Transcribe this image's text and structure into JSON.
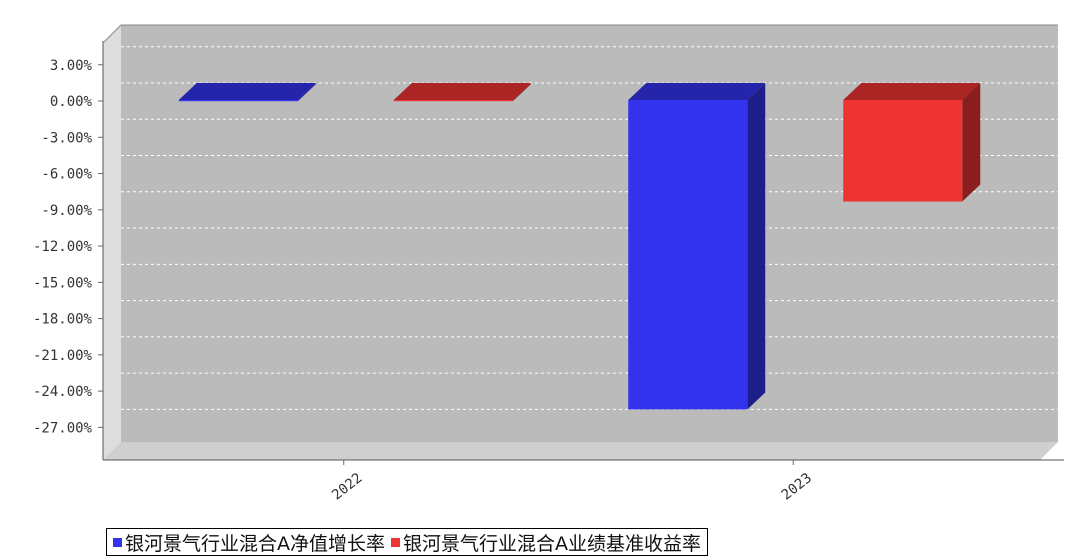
{
  "chart_data": {
    "type": "bar",
    "title": "",
    "xlabel": "",
    "ylabel": "",
    "categories": [
      "2022",
      "2023"
    ],
    "series": [
      {
        "name": "银河景气行业混合A净值增长率",
        "color": "#3333ee",
        "values": [
          -0.1,
          -25.6
        ]
      },
      {
        "name": "银河景气行业混合A业绩基准收益率",
        "color": "#ee3333",
        "values": [
          -0.1,
          -8.4
        ]
      }
    ],
    "yticks": [
      "3.00%",
      "0.00%",
      "-3.00%",
      "-6.00%",
      "-9.00%",
      "-12.00%",
      "-15.00%",
      "-18.00%",
      "-21.00%",
      "-24.00%",
      "-27.00%"
    ],
    "ylim": [
      -29.7,
      4.8
    ],
    "grid": true,
    "legend_position": "bottom",
    "background_color": "#bbbbbb"
  }
}
